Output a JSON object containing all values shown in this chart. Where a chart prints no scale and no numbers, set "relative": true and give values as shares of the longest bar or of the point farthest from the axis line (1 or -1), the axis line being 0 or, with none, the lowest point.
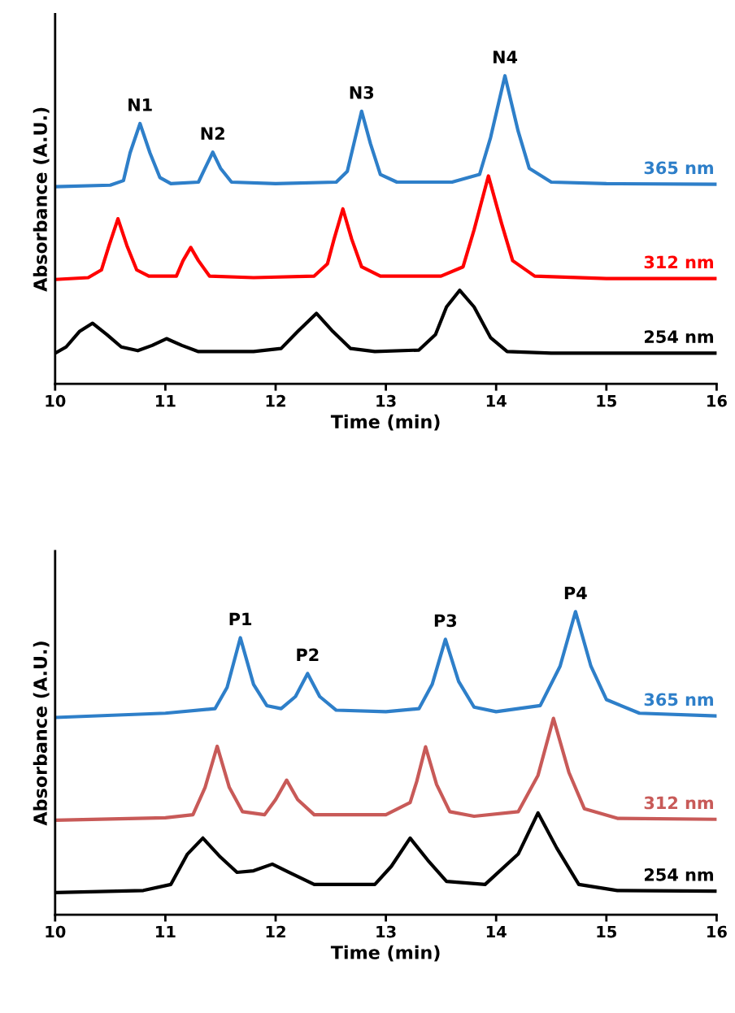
{
  "chart_data": [
    {
      "type": "line",
      "relative": true,
      "xlabel": "Time (min)",
      "ylabel": "Absorbance (A.U.)",
      "xlim": [
        10,
        16
      ],
      "xticks": [
        10,
        11,
        12,
        13,
        14,
        15,
        16
      ],
      "tick_labels": "x",
      "grid": false,
      "legend": false,
      "marker": "none",
      "line_style": "solid",
      "series": [
        {
          "name": "365 nm",
          "color": "#2e7fc9",
          "x": [
            10,
            10.5,
            10.62,
            10.68,
            10.77,
            10.86,
            10.95,
            11.05,
            11.3,
            11.36,
            11.43,
            11.5,
            11.6,
            12.0,
            12.55,
            12.65,
            12.71,
            12.78,
            12.86,
            12.95,
            13.1,
            13.6,
            13.85,
            13.95,
            14.08,
            14.2,
            14.3,
            14.5,
            15,
            16
          ],
          "values": [
            0.64,
            0.645,
            0.66,
            0.75,
            0.845,
            0.75,
            0.67,
            0.65,
            0.655,
            0.7,
            0.752,
            0.7,
            0.655,
            0.65,
            0.655,
            0.69,
            0.78,
            0.885,
            0.78,
            0.68,
            0.655,
            0.655,
            0.68,
            0.8,
            1.0,
            0.82,
            0.7,
            0.655,
            0.65,
            0.648
          ]
        },
        {
          "name": "312 nm",
          "color": "#ff0000",
          "x": [
            10,
            10.3,
            10.42,
            10.49,
            10.57,
            10.65,
            10.74,
            10.85,
            11.1,
            11.16,
            11.23,
            11.3,
            11.4,
            11.8,
            12.35,
            12.47,
            12.53,
            12.61,
            12.69,
            12.78,
            12.95,
            13.5,
            13.7,
            13.8,
            13.93,
            14.05,
            14.15,
            14.35,
            15,
            16
          ],
          "values": [
            0.339,
            0.345,
            0.37,
            0.45,
            0.536,
            0.45,
            0.37,
            0.35,
            0.35,
            0.4,
            0.443,
            0.4,
            0.35,
            0.345,
            0.35,
            0.39,
            0.47,
            0.568,
            0.47,
            0.38,
            0.35,
            0.35,
            0.38,
            0.5,
            0.675,
            0.52,
            0.4,
            0.35,
            0.342,
            0.342
          ]
        },
        {
          "name": "254 nm",
          "color": "#000000",
          "x": [
            10,
            10.1,
            10.22,
            10.34,
            10.47,
            10.6,
            10.75,
            10.88,
            11.01,
            11.15,
            11.3,
            11.8,
            12.05,
            12.2,
            12.37,
            12.52,
            12.68,
            12.9,
            13.3,
            13.45,
            13.55,
            13.67,
            13.8,
            13.95,
            14.1,
            14.5,
            16
          ],
          "values": [
            0.1,
            0.12,
            0.17,
            0.197,
            0.16,
            0.12,
            0.108,
            0.125,
            0.147,
            0.125,
            0.105,
            0.105,
            0.115,
            0.17,
            0.229,
            0.17,
            0.115,
            0.105,
            0.11,
            0.16,
            0.25,
            0.304,
            0.25,
            0.15,
            0.105,
            0.1,
            0.1
          ]
        }
      ],
      "annotations": [
        {
          "text": "N1",
          "x": 10.77,
          "y": 0.845
        },
        {
          "text": "N2",
          "x": 11.43,
          "y": 0.752
        },
        {
          "text": "N3",
          "x": 12.78,
          "y": 0.885
        },
        {
          "text": "N4",
          "x": 14.08,
          "y": 1.0
        }
      ]
    },
    {
      "type": "line",
      "relative": true,
      "xlabel": "Time (min)",
      "ylabel": "Absorbance (A.U.)",
      "xlim": [
        10,
        16
      ],
      "xticks": [
        10,
        11,
        12,
        13,
        14,
        15,
        16
      ],
      "tick_labels": "x",
      "grid": false,
      "legend": false,
      "marker": "none",
      "line_style": "solid",
      "series": [
        {
          "name": "365 nm",
          "color": "#2e7fc9",
          "x": [
            10,
            11,
            11.45,
            11.56,
            11.68,
            11.8,
            11.92,
            12.05,
            12.18,
            12.29,
            12.4,
            12.55,
            13.0,
            13.3,
            13.42,
            13.54,
            13.66,
            13.8,
            14.0,
            14.4,
            14.58,
            14.72,
            14.86,
            15.0,
            15.3,
            16
          ],
          "values": [
            0.651,
            0.665,
            0.68,
            0.75,
            0.914,
            0.76,
            0.69,
            0.68,
            0.72,
            0.796,
            0.72,
            0.675,
            0.67,
            0.68,
            0.76,
            0.909,
            0.77,
            0.685,
            0.67,
            0.69,
            0.82,
            1.0,
            0.82,
            0.71,
            0.665,
            0.656
          ]
        },
        {
          "name": "312 nm",
          "color": "#c85a58",
          "x": [
            10,
            11,
            11.25,
            11.36,
            11.47,
            11.58,
            11.7,
            11.9,
            12.0,
            12.1,
            12.2,
            12.35,
            13.0,
            13.22,
            13.28,
            13.36,
            13.46,
            13.58,
            13.8,
            14.2,
            14.38,
            14.52,
            14.66,
            14.8,
            15.1,
            16
          ],
          "values": [
            0.312,
            0.32,
            0.33,
            0.42,
            0.556,
            0.42,
            0.34,
            0.33,
            0.38,
            0.444,
            0.38,
            0.33,
            0.33,
            0.37,
            0.44,
            0.554,
            0.43,
            0.34,
            0.325,
            0.34,
            0.46,
            0.648,
            0.47,
            0.35,
            0.318,
            0.315
          ]
        },
        {
          "name": "254 nm",
          "color": "#000000",
          "x": [
            10,
            10.8,
            11.05,
            11.2,
            11.34,
            11.5,
            11.65,
            11.8,
            11.97,
            12.12,
            12.35,
            12.9,
            13.05,
            13.22,
            13.38,
            13.55,
            13.9,
            14.2,
            14.38,
            14.55,
            14.75,
            15.1,
            16
          ],
          "values": [
            0.073,
            0.08,
            0.1,
            0.2,
            0.253,
            0.19,
            0.14,
            0.145,
            0.167,
            0.14,
            0.1,
            0.1,
            0.16,
            0.253,
            0.18,
            0.11,
            0.1,
            0.2,
            0.336,
            0.22,
            0.1,
            0.08,
            0.078
          ]
        }
      ],
      "annotations": [
        {
          "text": "P1",
          "x": 11.68,
          "y": 0.914
        },
        {
          "text": "P2",
          "x": 12.29,
          "y": 0.796
        },
        {
          "text": "P3",
          "x": 13.54,
          "y": 0.909
        },
        {
          "text": "P4",
          "x": 14.72,
          "y": 1.0
        }
      ]
    }
  ]
}
